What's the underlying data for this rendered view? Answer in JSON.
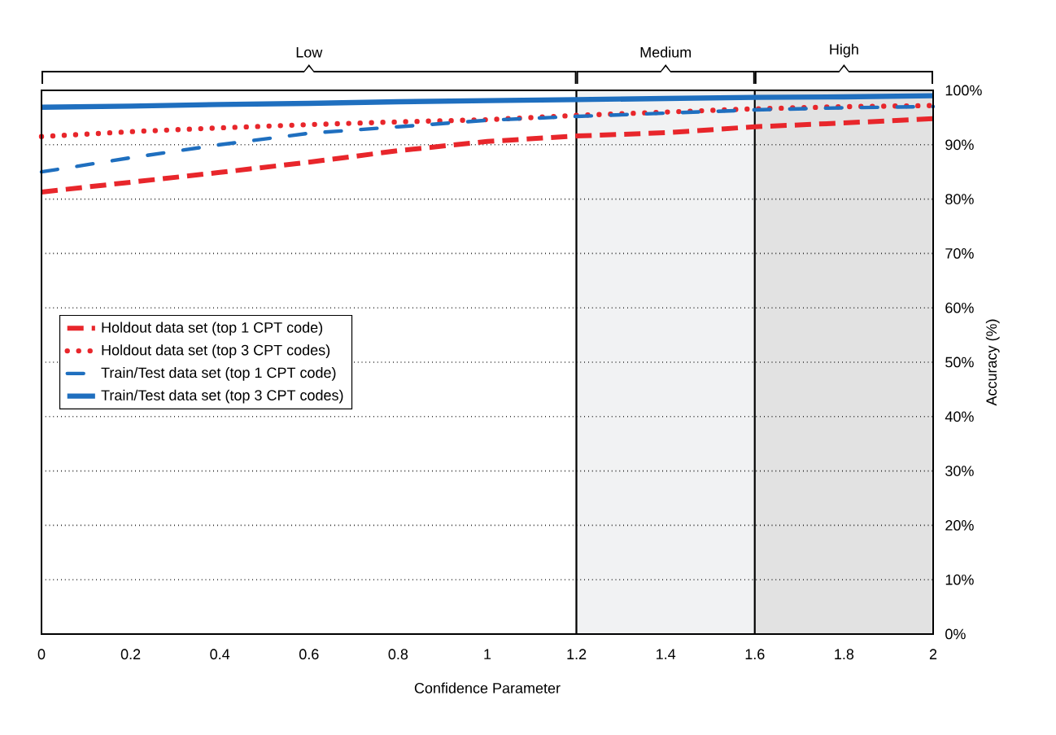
{
  "chart_data": {
    "type": "line",
    "xlabel": "Confidence Parameter",
    "ylabel": "Accuracy (%)",
    "x": [
      0,
      0.2,
      0.4,
      0.6,
      0.8,
      1.0,
      1.2,
      1.4,
      1.6,
      1.8,
      2.0
    ],
    "series": [
      {
        "name": "Holdout data set (top 1 CPT code)",
        "color": "#e8262b",
        "line_style": "dashed",
        "values": [
          81.3,
          83.1,
          84.9,
          86.8,
          88.9,
          90.6,
          91.6,
          92.2,
          93.3,
          94.0,
          94.8
        ]
      },
      {
        "name": "Holdout data set (top 3 CPT codes)",
        "color": "#e8262b",
        "line_style": "dotted",
        "values": [
          91.5,
          92.4,
          93.1,
          93.7,
          94.2,
          94.6,
          95.4,
          96.0,
          96.6,
          97.0,
          97.2
        ]
      },
      {
        "name": "Train/Test data set (top 1 CPT code)",
        "color": "#1f6fbf",
        "line_style": "dashdot",
        "values": [
          85.0,
          87.6,
          90.0,
          92.1,
          93.3,
          94.5,
          95.2,
          95.8,
          96.4,
          96.8,
          97.0
        ]
      },
      {
        "name": "Train/Test data set (top 3 CPT codes)",
        "color": "#1f6fbf",
        "line_style": "solid",
        "values": [
          96.9,
          97.1,
          97.4,
          97.6,
          97.9,
          98.1,
          98.3,
          98.5,
          98.7,
          98.8,
          99.0
        ]
      }
    ],
    "xlim": [
      0,
      2
    ],
    "xticks": [
      0,
      0.2,
      0.4,
      0.6,
      0.8,
      1,
      1.2,
      1.4,
      1.6,
      1.8,
      2
    ],
    "ylim": [
      0,
      100
    ],
    "yticks": [
      {
        "value": 0,
        "label": "0%"
      },
      {
        "value": 10,
        "label": "10%"
      },
      {
        "value": 20,
        "label": "20%"
      },
      {
        "value": 30,
        "label": "30%"
      },
      {
        "value": 40,
        "label": "40%"
      },
      {
        "value": 50,
        "label": "50%"
      },
      {
        "value": 60,
        "label": "60%"
      },
      {
        "value": 70,
        "label": "70%"
      },
      {
        "value": 80,
        "label": "80%"
      },
      {
        "value": 90,
        "label": "90%"
      },
      {
        "value": 100,
        "label": "100%"
      }
    ],
    "bands": [
      {
        "axis": "x",
        "from": 0,
        "to": 1.2,
        "label": "Low",
        "color": "#ffffff"
      },
      {
        "axis": "x",
        "from": 1.2,
        "to": 1.6,
        "label": "Medium",
        "color": "#f1f2f3"
      },
      {
        "axis": "x",
        "from": 1.6,
        "to": 2,
        "label": "High",
        "color": "#e2e2e2"
      }
    ],
    "grid": "y",
    "legend": "left"
  }
}
